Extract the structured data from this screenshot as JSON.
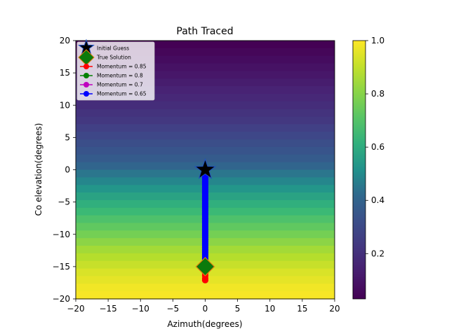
{
  "chart_data": {
    "type": "scatter",
    "title": "Path Traced",
    "xlabel": "Azimuth(degrees)",
    "ylabel": "Co elevation(degrees)",
    "xlim": [
      -20,
      20
    ],
    "ylim": [
      -20,
      20
    ],
    "xticks": [
      -20,
      -15,
      -10,
      -5,
      0,
      5,
      10,
      15,
      20
    ],
    "yticks": [
      -20,
      -15,
      -10,
      -5,
      0,
      5,
      10,
      15,
      20
    ],
    "xtick_labels": [
      "−20",
      "−15",
      "−10",
      "−5",
      "0",
      "5",
      "10",
      "15",
      "20"
    ],
    "ytick_labels": [
      "−20",
      "−15",
      "−10",
      "−5",
      "0",
      "5",
      "10",
      "15",
      "20"
    ],
    "background": {
      "type": "heatmap",
      "colormap": "viridis",
      "description_note": "value increases toward bottom",
      "rows_top_to_bottom": [
        0.03,
        0.05,
        0.07,
        0.09,
        0.11,
        0.13,
        0.15,
        0.17,
        0.19,
        0.21,
        0.23,
        0.26,
        0.29,
        0.32,
        0.35,
        0.38,
        0.41,
        0.45,
        0.49,
        0.53,
        0.57,
        0.61,
        0.65,
        0.69,
        0.73,
        0.77,
        0.81,
        0.85,
        0.88,
        0.91,
        0.94,
        0.96,
        0.98,
        0.99
      ]
    },
    "colorbar": {
      "min": 0.03,
      "max": 1.0,
      "ticks": [
        0.2,
        0.4,
        0.6,
        0.8,
        1.0
      ],
      "tick_labels": [
        "0.2",
        "0.4",
        "0.6",
        "0.8",
        "1.0"
      ]
    },
    "legend": {
      "placement": "top-left",
      "entries": [
        {
          "label": "Initial Guess",
          "marker": "star",
          "color": "#000000"
        },
        {
          "label": "True Solution",
          "marker": "diamond",
          "color": "#008000"
        },
        {
          "label": "Momentum = 0.85",
          "marker": "circle-line",
          "color": "#ff0000"
        },
        {
          "label": "Momentum = 0.8",
          "marker": "circle-line",
          "color": "#008000"
        },
        {
          "label": "Momentum = 0.7",
          "marker": "circle-line",
          "color": "#bf00bf"
        },
        {
          "label": "Momentum = 0.65",
          "marker": "circle-line",
          "color": "#0000ff"
        }
      ]
    },
    "points": {
      "initial_guess": {
        "x": 0,
        "y": 0
      },
      "true_solution": {
        "x": 0,
        "y": -15
      }
    },
    "series": [
      {
        "name": "Momentum = 0.85",
        "color": "#ff0000",
        "x": [
          0,
          0,
          0,
          0,
          0,
          0,
          0,
          0,
          0,
          0,
          0,
          0,
          0,
          0,
          0,
          0,
          0,
          0,
          0,
          0,
          0,
          0,
          0,
          0,
          0,
          0,
          0
        ],
        "y": [
          0,
          -0.6,
          -1.2,
          -1.9,
          -2.6,
          -3.3,
          -4.0,
          -4.8,
          -5.6,
          -6.4,
          -7.2,
          -8.0,
          -8.8,
          -9.6,
          -10.4,
          -11.2,
          -12.0,
          -12.8,
          -13.4,
          -14.0,
          -14.6,
          -15.1,
          -15.5,
          -16.0,
          -16.4,
          -16.8,
          -17.1
        ]
      },
      {
        "name": "Momentum = 0.8",
        "color": "#008000",
        "x": [
          0,
          0,
          0,
          0,
          0,
          0,
          0,
          0,
          0,
          0,
          0,
          0,
          0,
          0,
          0,
          0,
          0,
          0,
          0,
          0,
          0,
          0,
          0
        ],
        "y": [
          0,
          -0.6,
          -1.3,
          -2.0,
          -2.8,
          -3.6,
          -4.4,
          -5.2,
          -6.0,
          -6.8,
          -7.6,
          -8.4,
          -9.2,
          -10.0,
          -10.8,
          -11.6,
          -12.4,
          -13.1,
          -13.7,
          -14.3,
          -14.8,
          -15.2,
          -15.5
        ]
      },
      {
        "name": "Momentum = 0.7",
        "color": "#bf00bf",
        "x": [
          0,
          0,
          0,
          0,
          0,
          0,
          0,
          0,
          0,
          0,
          0,
          0,
          0,
          0,
          0,
          0,
          0,
          0,
          0,
          0,
          0,
          0
        ],
        "y": [
          0,
          -0.7,
          -1.4,
          -2.1,
          -2.9,
          -3.7,
          -4.5,
          -5.3,
          -6.1,
          -6.9,
          -7.7,
          -8.5,
          -9.3,
          -10.1,
          -10.9,
          -11.7,
          -12.5,
          -13.2,
          -13.8,
          -14.3,
          -14.7,
          -15.0
        ]
      },
      {
        "name": "Momentum = 0.65",
        "color": "#0000ff",
        "x": [
          0,
          0,
          0,
          0,
          0,
          0,
          0,
          0,
          0,
          0,
          0,
          0,
          0,
          0,
          0,
          0,
          0,
          0,
          0,
          0,
          0,
          0,
          0,
          0,
          0,
          0,
          0,
          0,
          0,
          0,
          0,
          0,
          0,
          0,
          0,
          0,
          0,
          0,
          0,
          0,
          0,
          0,
          0,
          0,
          0,
          0,
          0,
          0
        ],
        "y": [
          0,
          -0.3,
          -0.6,
          -0.9,
          -1.2,
          -1.5,
          -1.8,
          -2.1,
          -2.4,
          -2.7,
          -3.0,
          -3.3,
          -3.6,
          -3.9,
          -4.2,
          -4.5,
          -4.8,
          -5.1,
          -5.4,
          -5.7,
          -6.0,
          -6.3,
          -6.6,
          -6.9,
          -7.2,
          -7.5,
          -7.8,
          -8.1,
          -8.4,
          -8.7,
          -9.0,
          -9.3,
          -9.6,
          -9.9,
          -10.2,
          -10.5,
          -10.8,
          -11.1,
          -11.4,
          -11.7,
          -12.0,
          -12.3,
          -12.6,
          -12.9,
          -13.2,
          -13.5,
          -13.8,
          -14.1
        ]
      }
    ]
  }
}
